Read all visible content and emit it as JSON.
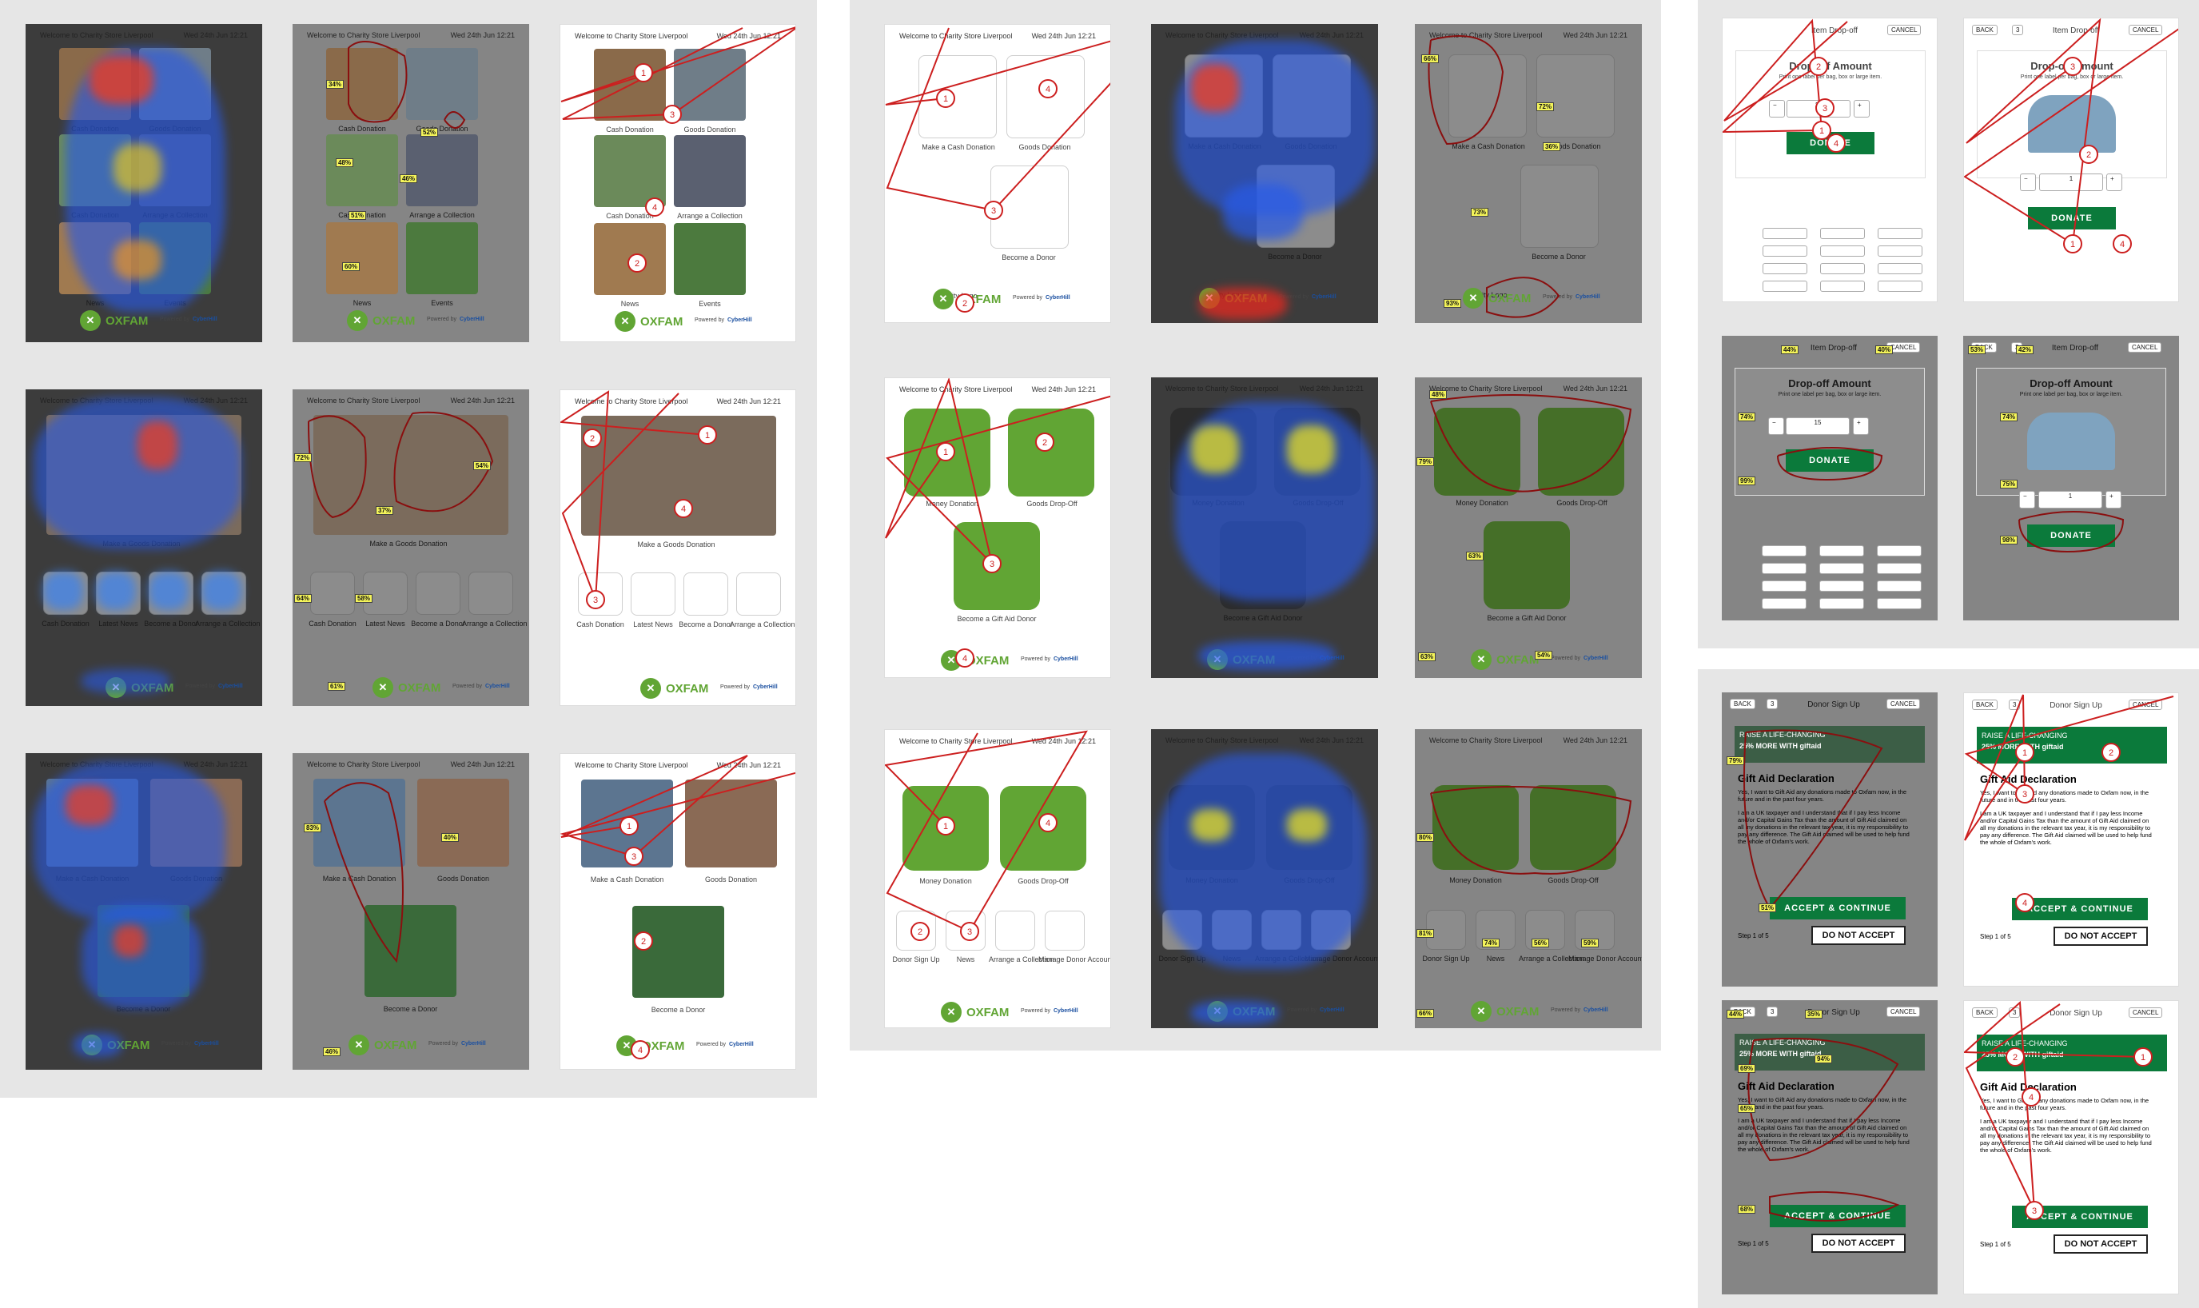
{
  "header": {
    "welcome": "Welcome to Charity Store Liverpool",
    "date": "Wed 24th Jun  12:21",
    "powered": "Powered by",
    "brand": "OXFAM",
    "cyber": "CyberHill"
  },
  "labels": {
    "cash": "Cash Donation",
    "goods": "Goods Donation",
    "collection": "Arrange a Collection",
    "donor": "Become a Donor",
    "news": "News",
    "events": "Events",
    "goods_make": "Make a Goods Donation",
    "latest_news": "Latest News",
    "make_cash": "Make a Cash Donation",
    "money": "Money Donation",
    "goods_dropoff": "Goods Drop-Off",
    "gift_aid": "Become a Gift Aid Donor",
    "donor_signup": "Donor Sign Up",
    "manage": "Manage Donor Account",
    "charity_logo": "Charity Logo"
  },
  "dropoff": {
    "title": "Item Drop-off",
    "cancel": "CANCEL",
    "back": "BACK",
    "badge": "3",
    "amount_title": "Drop-off Amount",
    "hint": "Print one label per bag, box or large item.",
    "minus": "−",
    "plus": "+",
    "qty": "15",
    "qty1": "1",
    "donate": "DONATE"
  },
  "giftaid": {
    "title": "Donor Sign Up",
    "banner1": "RAISE A LIFE-CHANGING",
    "banner2": "25% MORE WITH giftaid",
    "heading": "Gift Aid Declaration",
    "p1": "Yes, I want to Gift Aid any donations made to Oxfam now, in the future and in the past four years.",
    "p2": "I am a UK taxpayer and I understand that if I pay less Income and/or Capital Gains Tax than the amount of Gift Aid claimed on all my donations in the relevant tax year, it is my responsibility to pay any difference. The Gift Aid claimed will be used to help fund the whole of Oxfam's work.",
    "accept": "ACCEPT & CONTINUE",
    "decline": "DO NOT ACCEPT",
    "step": "Step 1 of 5"
  },
  "colors": {
    "green": "#61a534",
    "darkgreen": "#0b7a3b",
    "route": "#cc1f1f"
  },
  "badges": {
    "l1": [
      "34%",
      "52%",
      "48%",
      "46%",
      "51%",
      "60%"
    ],
    "l2": [
      "72%",
      "54%",
      "37%",
      "64%",
      "58%",
      "61%"
    ],
    "l3": [
      "83%",
      "40%",
      "46%"
    ],
    "m1": [
      "66%",
      "72%",
      "36%",
      "73%",
      "93%"
    ],
    "m2": [
      "48%",
      "79%",
      "63%",
      "63%",
      "54%"
    ],
    "m3": [
      "80%",
      "81%",
      "74%",
      "56%",
      "59%",
      "66%"
    ],
    "r1": [
      "44%",
      "40%",
      "74%",
      "99%"
    ],
    "r2": [
      "53%",
      "42%",
      "74%",
      "75%",
      "98%"
    ],
    "r3": [
      "79%",
      "51%"
    ],
    "r4": [
      "44%",
      "35%",
      "69%",
      "94%",
      "65%",
      "68%"
    ]
  },
  "numbers": [
    "1",
    "2",
    "3",
    "4"
  ]
}
